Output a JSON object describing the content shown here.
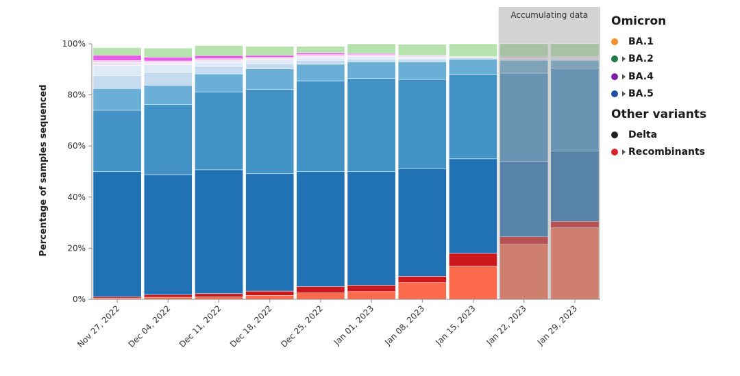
{
  "chart_data": {
    "type": "bar",
    "stacked": true,
    "ylabel": "Percentage of samples sequenced",
    "yticks": [
      "0%",
      "20%",
      "40%",
      "60%",
      "80%",
      "100%"
    ],
    "ylim": [
      0,
      100
    ],
    "grid": false,
    "legend_position": "right",
    "annotation": "Accumulating data",
    "accumulating_from_index": 8,
    "categories": [
      "Nov 27, 2022",
      "Dec 04, 2022",
      "Dec 11, 2022",
      "Dec 18, 2022",
      "Dec 25, 2022",
      "Jan 01, 2023",
      "Jan 08, 2023",
      "Jan 15, 2023",
      "Jan 22, 2023",
      "Jan 29, 2023"
    ],
    "series": [
      {
        "color": "#fb6a4a",
        "values": [
          0.5,
          0.8,
          1.0,
          1.5,
          2.5,
          3.0,
          6.5,
          13.0,
          21.5,
          28.0
        ]
      },
      {
        "color": "#cb181d",
        "values": [
          0.5,
          1.0,
          1.2,
          1.7,
          2.5,
          2.5,
          2.5,
          5.0,
          3.0,
          2.5
        ]
      },
      {
        "color": "#2171b5",
        "values": [
          49.0,
          47.0,
          48.5,
          46.0,
          45.0,
          44.5,
          42.0,
          37.0,
          29.5,
          27.5
        ]
      },
      {
        "color": "#4292c6",
        "values": [
          24.0,
          27.5,
          30.5,
          33.0,
          35.5,
          36.5,
          35.0,
          33.0,
          34.5,
          32.5
        ]
      },
      {
        "color": "#6baed6",
        "values": [
          8.5,
          7.5,
          7.0,
          8.0,
          6.5,
          6.5,
          7.0,
          6.0,
          5.0,
          3.0
        ]
      },
      {
        "color": "#c6dbef",
        "values": [
          5.0,
          5.0,
          3.0,
          2.0,
          1.5,
          1.0,
          1.0,
          0.5,
          0.5,
          0.5
        ]
      },
      {
        "color": "#deebf7",
        "values": [
          4.0,
          3.0,
          1.5,
          1.5,
          1.0,
          1.0,
          0.5,
          0.5,
          0.5,
          0.5
        ]
      },
      {
        "color": "#f2e6f7",
        "values": [
          1.5,
          1.0,
          1.0,
          0.7,
          0.8,
          0.5,
          0.5,
          0.0,
          0.0,
          0.0
        ]
      },
      {
        "color": "#f1b6da",
        "values": [
          0.5,
          0.5,
          0.5,
          0.3,
          0.5,
          0.3,
          0.3,
          0.0,
          0.5,
          0.3
        ]
      },
      {
        "color": "#e55ee6",
        "values": [
          2.0,
          1.5,
          1.2,
          0.8,
          0.7,
          0.4,
          0.2,
          0.0,
          0.0,
          0.2
        ]
      },
      {
        "color": "#b5e2ad",
        "values": [
          3.0,
          3.5,
          3.9,
          3.5,
          2.5,
          3.8,
          4.3,
          5.0,
          5.0,
          5.0
        ]
      }
    ]
  },
  "legend": {
    "groups": [
      {
        "title": "Omicron",
        "items": [
          {
            "label": "BA.1",
            "color": "#f28e2b",
            "expandable": false
          },
          {
            "label": "BA.2",
            "color": "#1e7b46",
            "expandable": true
          },
          {
            "label": "BA.4",
            "color": "#7b1fa2",
            "expandable": true
          },
          {
            "label": "BA.5",
            "color": "#1f4fa0",
            "expandable": true
          }
        ]
      },
      {
        "title": "Other variants",
        "items": [
          {
            "label": "Delta",
            "color": "#222222",
            "expandable": false
          },
          {
            "label": "Recombinants",
            "color": "#d62728",
            "expandable": true
          }
        ]
      }
    ]
  }
}
